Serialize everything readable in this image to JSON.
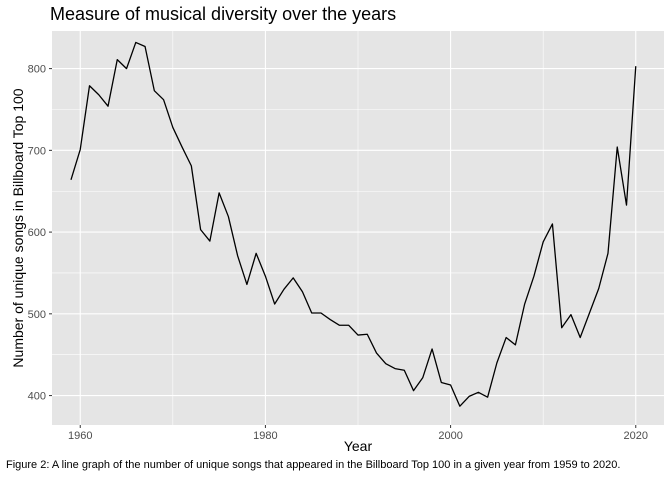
{
  "chart_data": {
    "type": "line",
    "title": "Measure of musical diversity over the years",
    "xlabel": "Year",
    "ylabel": "Number of unique songs in Billboard Top 100",
    "xlim": [
      1956.95,
      2023.05
    ],
    "ylim": [
      364,
      846
    ],
    "xticks": [
      1960,
      1980,
      2000,
      2020
    ],
    "yticks": [
      400,
      500,
      600,
      700,
      800
    ],
    "grid": true,
    "x": [
      1959,
      1960,
      1961,
      1962,
      1963,
      1964,
      1965,
      1966,
      1967,
      1968,
      1969,
      1970,
      1971,
      1972,
      1973,
      1974,
      1975,
      1976,
      1977,
      1978,
      1979,
      1980,
      1981,
      1982,
      1983,
      1984,
      1985,
      1986,
      1987,
      1988,
      1989,
      1990,
      1991,
      1992,
      1993,
      1994,
      1995,
      1996,
      1997,
      1998,
      1999,
      2000,
      2001,
      2002,
      2003,
      2004,
      2005,
      2006,
      2007,
      2008,
      2009,
      2010,
      2011,
      2012,
      2013,
      2014,
      2015,
      2016,
      2017,
      2018,
      2019,
      2020
    ],
    "y": [
      664,
      701,
      779,
      768,
      754,
      811,
      800,
      832,
      827,
      773,
      762,
      728,
      704,
      681,
      603,
      589,
      648,
      619,
      571,
      536,
      574,
      546,
      512,
      530,
      544,
      527,
      501,
      501,
      493,
      486,
      486,
      474,
      475,
      452,
      439,
      433,
      431,
      406,
      422,
      457,
      416,
      413,
      387,
      399,
      404,
      398,
      440,
      471,
      462,
      512,
      546,
      588,
      610,
      483,
      499,
      471,
      501,
      531,
      574,
      704,
      633,
      803
    ]
  },
  "caption": "Figure 2: A line graph of the number of unique songs that appeared in the Billboard Top 100 in a given year from 1959 to 2020.",
  "colors": {
    "panel": "#e5e5e5",
    "grid": "#ffffff",
    "line": "#000000",
    "tick": "#4d4d4d"
  }
}
